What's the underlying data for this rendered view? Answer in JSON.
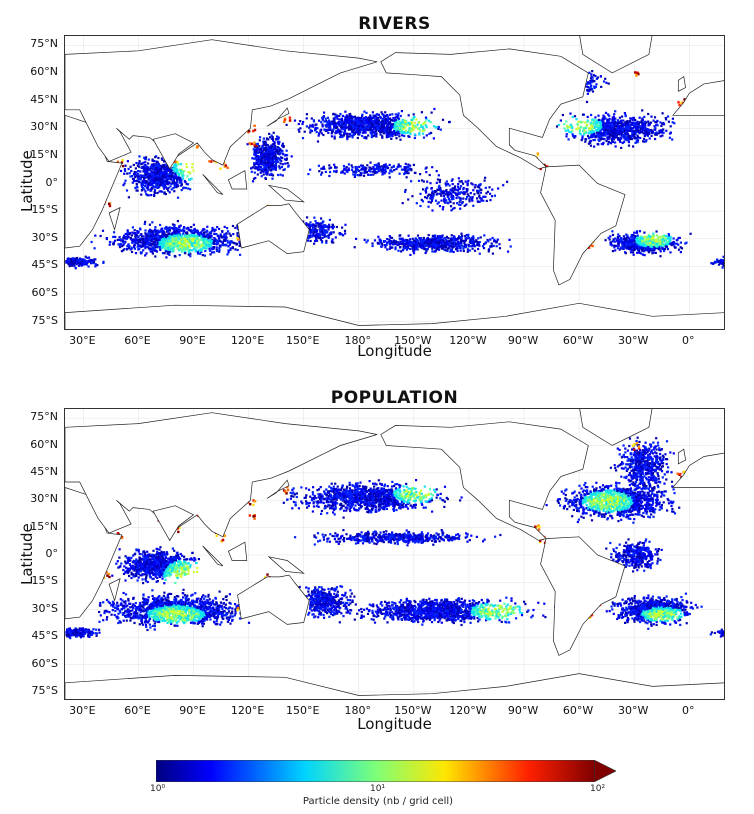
{
  "panels": [
    {
      "title": "RIVERS",
      "key": "rivers"
    },
    {
      "title": "POPULATION",
      "key": "population"
    }
  ],
  "axes": {
    "lat_labels": [
      "75°N",
      "60°N",
      "45°N",
      "30°N",
      "15°N",
      "0°",
      "15°S",
      "30°S",
      "45°S",
      "60°S",
      "75°S"
    ],
    "lon_labels": [
      "30°E",
      "60°E",
      "90°E",
      "120°E",
      "150°E",
      "180°",
      "150°W",
      "120°W",
      "90°W",
      "60°W",
      "30°W",
      "0°"
    ],
    "xlabel": "Longitude",
    "ylabel": "Latitude"
  },
  "colorbar": {
    "label": "Particle density (nb / grid cell)",
    "ticks": [
      "10⁰",
      "10¹",
      "10²"
    ],
    "colormap": "jet",
    "scale": "log"
  },
  "colors": {
    "low": "#00008f",
    "mid": "#7fff7f",
    "high": "#800000",
    "coast": "#222222"
  }
}
